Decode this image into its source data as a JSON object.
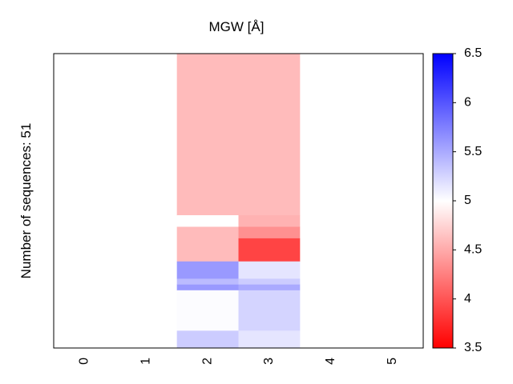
{
  "chart_data": {
    "type": "heatmap",
    "title": "MGW [Å]",
    "ylabel": "Number of sequences: 51",
    "xlabel": "",
    "x_categories": [
      "0",
      "1",
      "2",
      "3",
      "4",
      "5"
    ],
    "n_rows": 51,
    "colormap": "bwr",
    "color_range": [
      3.5,
      6.5
    ],
    "colorbar_ticks": [
      "6.5",
      "6",
      "5.5",
      "5",
      "4.5",
      "4",
      "3.5"
    ],
    "colorbar_tick_values": [
      6.5,
      6.0,
      5.5,
      5.0,
      4.5,
      4.0,
      3.5
    ],
    "blocks": [
      {
        "col": 2,
        "row_start": 0,
        "row_end": 28,
        "value": 4.6
      },
      {
        "col": 2,
        "row_start": 28,
        "row_end": 30,
        "value": 5.0
      },
      {
        "col": 2,
        "row_start": 30,
        "row_end": 36,
        "value": 4.6
      },
      {
        "col": 2,
        "row_start": 36,
        "row_end": 39,
        "value": 5.6
      },
      {
        "col": 2,
        "row_start": 39,
        "row_end": 40,
        "value": 5.4
      },
      {
        "col": 2,
        "row_start": 40,
        "row_end": 41,
        "value": 5.6
      },
      {
        "col": 2,
        "row_start": 41,
        "row_end": 48,
        "value": 5.02
      },
      {
        "col": 2,
        "row_start": 48,
        "row_end": 51,
        "value": 5.3
      },
      {
        "col": 3,
        "row_start": 0,
        "row_end": 28,
        "value": 4.6
      },
      {
        "col": 3,
        "row_start": 28,
        "row_end": 30,
        "value": 4.55
      },
      {
        "col": 3,
        "row_start": 30,
        "row_end": 32,
        "value": 4.35
      },
      {
        "col": 3,
        "row_start": 32,
        "row_end": 36,
        "value": 3.9
      },
      {
        "col": 3,
        "row_start": 36,
        "row_end": 39,
        "value": 5.15
      },
      {
        "col": 3,
        "row_start": 39,
        "row_end": 40,
        "value": 5.3
      },
      {
        "col": 3,
        "row_start": 40,
        "row_end": 41,
        "value": 5.5
      },
      {
        "col": 3,
        "row_start": 41,
        "row_end": 48,
        "value": 5.25
      },
      {
        "col": 3,
        "row_start": 48,
        "row_end": 51,
        "value": 5.15
      }
    ],
    "background_value": 5.0
  }
}
